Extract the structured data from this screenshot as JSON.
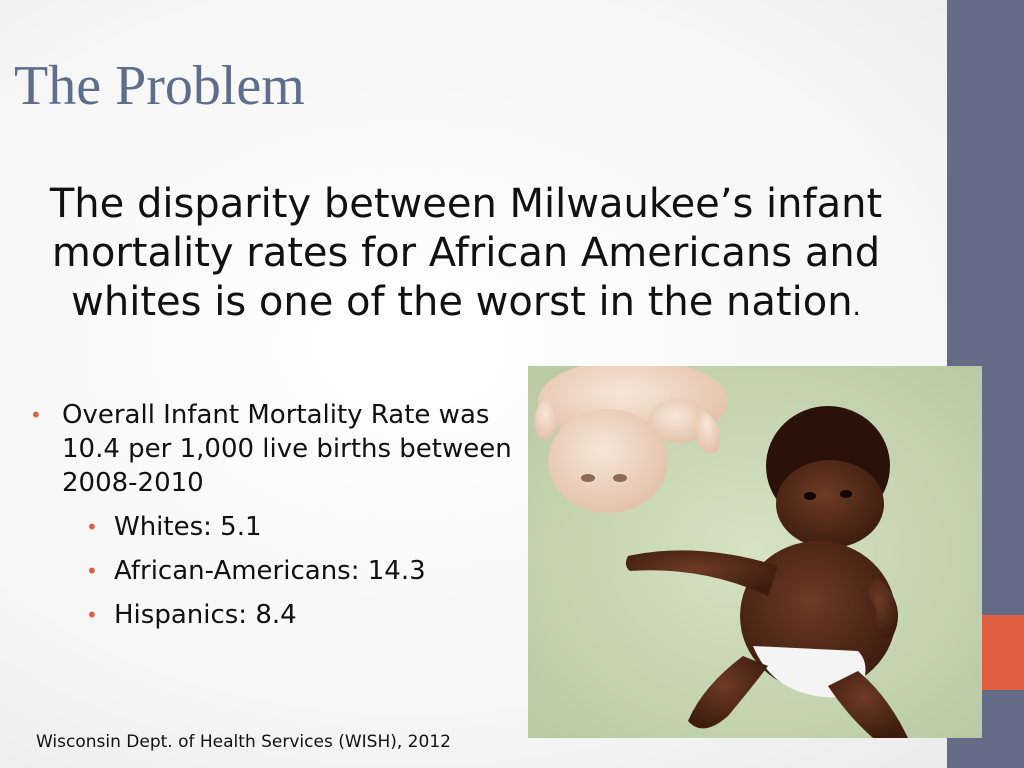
{
  "slide": {
    "title": "The Problem",
    "statement": "The disparity between Milwaukee’s infant mortality rates for African Americans and whites is one of the worst in the nation",
    "statement_end": ".",
    "bullet_main": "Overall Infant Mortality Rate was 10.4 per 1,000 live births between 2008-2010",
    "sub_bullets": [
      "Whites:  5.1",
      "African-Americans:  14.3",
      "Hispanics:  8.4"
    ],
    "source": "Wisconsin Dept. of Health Services (WISH), 2012"
  },
  "colors": {
    "sidebar": "#646b86",
    "accent": "#dd5f3f",
    "title": "#5e6e8a"
  },
  "icons": {
    "bullet": "bullet-dot-icon"
  }
}
